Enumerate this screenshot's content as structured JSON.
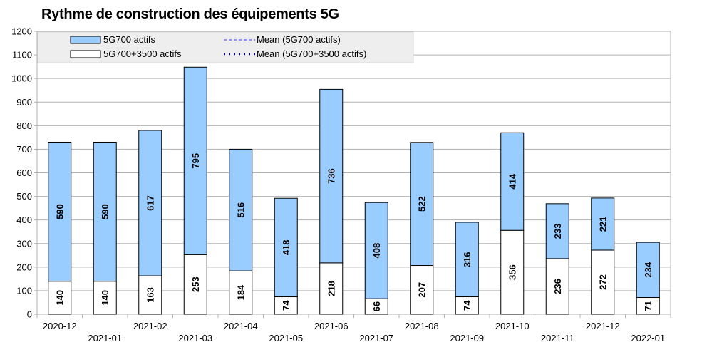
{
  "chart_data": {
    "type": "bar",
    "stacked": true,
    "title": "Rythme de construction des équipements 5G",
    "xlabel": "",
    "ylabel": "",
    "ylim": [
      0,
      1200
    ],
    "ytick_step": 100,
    "grid": true,
    "legend_position": "top-left",
    "categories": [
      "2020-12",
      "2021-01",
      "2021-02",
      "2021-03",
      "2021-04",
      "2021-05",
      "2021-06",
      "2021-07",
      "2021-08",
      "2021-09",
      "2021-10",
      "2021-11",
      "2021-12",
      "2022-01"
    ],
    "series": [
      {
        "name": "5G700+3500 actifs",
        "color": "#ffffff",
        "values": [
          140,
          140,
          163,
          253,
          184,
          74,
          218,
          66,
          207,
          74,
          356,
          236,
          272,
          71
        ]
      },
      {
        "name": "5G700 actifs",
        "color": "#99ccff",
        "values": [
          590,
          590,
          617,
          795,
          516,
          418,
          736,
          408,
          522,
          316,
          414,
          233,
          221,
          234
        ]
      }
    ],
    "legend": [
      {
        "label": "5G700 actifs",
        "kind": "box",
        "color": "#99ccff"
      },
      {
        "label": "Mean (5G700 actifs)",
        "kind": "dashed-line",
        "color": "#3333ff"
      },
      {
        "label": "5G700+3500 actifs",
        "kind": "box",
        "color": "#ffffff"
      },
      {
        "label": "Mean (5G700+3500 actifs)",
        "kind": "dotted-line",
        "color": "#000080"
      }
    ]
  }
}
